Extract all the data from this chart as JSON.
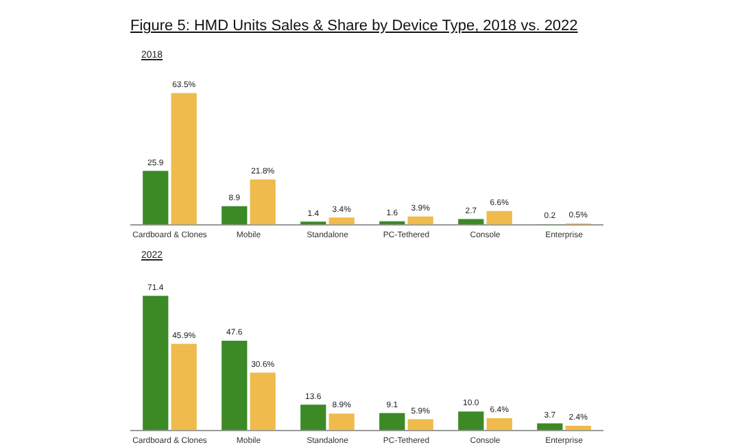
{
  "chart_data": [
    {
      "type": "bar",
      "title": "Figure 5: HMD Units Sales & Share by Device Type, 2018 vs. 2022",
      "subtitle": "2018",
      "categories": [
        "Cardboard & Clones",
        "Mobile",
        "Standalone",
        "PC-Tethered",
        "Console",
        "Enterprise"
      ],
      "series": [
        {
          "color": "#3b8a26",
          "values": [
            25.9,
            8.9,
            1.4,
            1.6,
            2.7,
            0.2
          ],
          "value_labels": [
            "25.9",
            "8.9",
            "1.4",
            "1.6",
            "2.7",
            "0.2"
          ]
        },
        {
          "color": "#efbb4c",
          "values": [
            63.5,
            21.8,
            3.4,
            3.9,
            6.6,
            0.5
          ],
          "value_labels": [
            "63.5%",
            "21.8%",
            "3.4%",
            "3.9%",
            "6.6%",
            "0.5%"
          ]
        }
      ],
      "grid": false,
      "legend": false,
      "tick_labels": "x"
    },
    {
      "type": "bar",
      "subtitle": "2022",
      "categories": [
        "Cardboard & Clones",
        "Mobile",
        "Standalone",
        "PC-Tethered",
        "Console",
        "Enterprise"
      ],
      "series": [
        {
          "color": "#3b8a26",
          "values": [
            71.4,
            47.6,
            13.6,
            9.1,
            10.0,
            3.7
          ],
          "value_labels": [
            "71.4",
            "47.6",
            "13.6",
            "9.1",
            "10.0",
            "3.7"
          ]
        },
        {
          "color": "#efbb4c",
          "values": [
            45.9,
            30.6,
            8.9,
            5.9,
            6.4,
            2.4
          ],
          "value_labels": [
            "45.9%",
            "30.6%",
            "8.9%",
            "5.9%",
            "6.4%",
            "2.4%"
          ]
        }
      ],
      "grid": false,
      "legend": false,
      "tick_labels": "x"
    }
  ]
}
